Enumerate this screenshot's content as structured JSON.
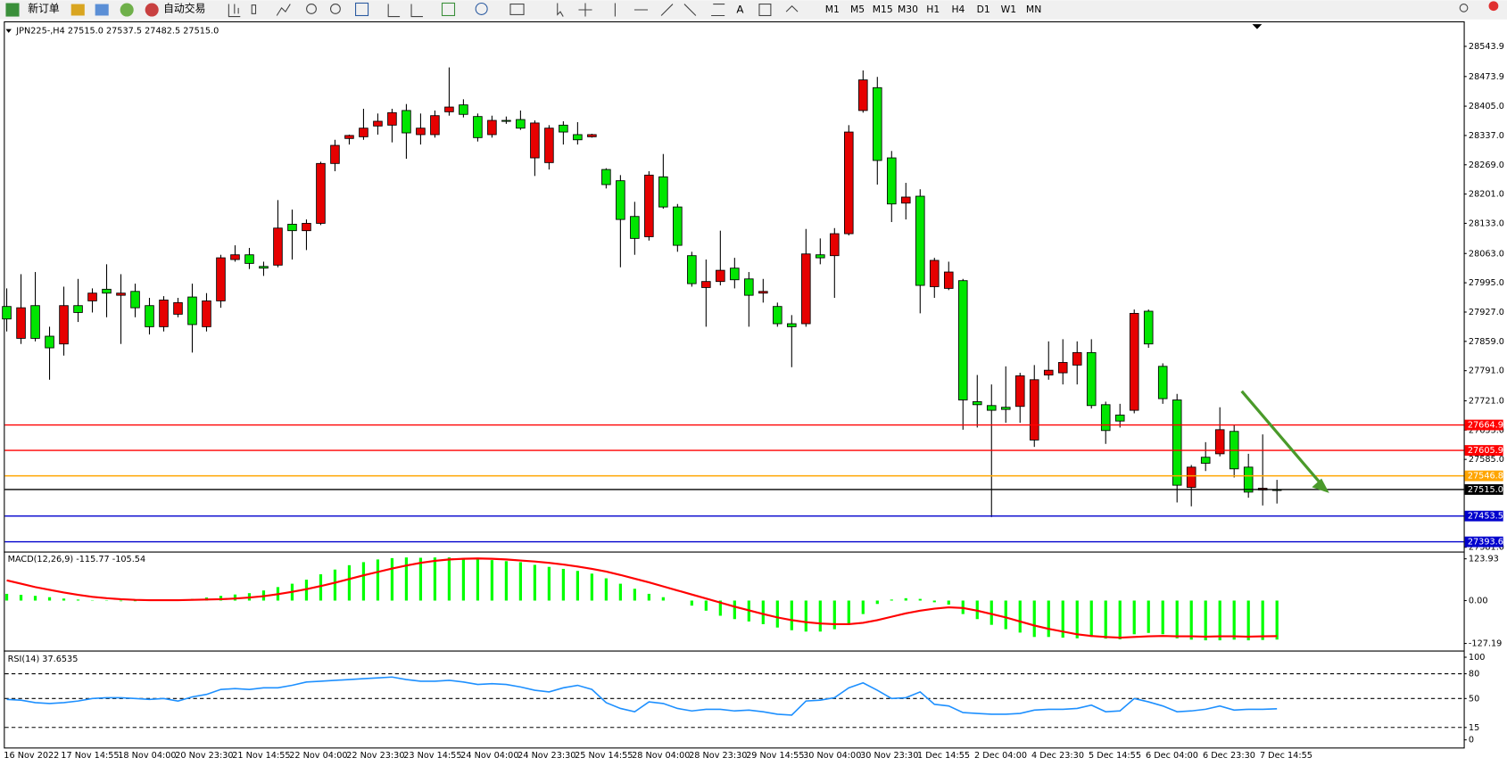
{
  "toolbar": {
    "new_order": "新订单",
    "auto_trading": "自动交易",
    "timeframes": [
      "M1",
      "M5",
      "M15",
      "M30",
      "H1",
      "H4",
      "D1",
      "W1",
      "MN"
    ]
  },
  "chart_data": [
    {
      "type": "candlestick",
      "title": "JPN225-,H4  27515.0 27537.5 27482.5 27515.0",
      "up_color": "#00e600",
      "down_color": "#e60000",
      "grid": false,
      "categories": [
        "16 Nov 2022",
        null,
        null,
        null,
        "17 Nov 14:55",
        null,
        null,
        null,
        "18 Nov 04:00",
        null,
        null,
        null,
        "20 Nov 23:30",
        null,
        null,
        null,
        "21 Nov 14:55",
        null,
        null,
        null,
        "22 Nov 04:00",
        null,
        null,
        null,
        "22 Nov 23:30",
        null,
        null,
        null,
        "23 Nov 14:55",
        null,
        null,
        null,
        "24 Nov 04:00",
        null,
        null,
        null,
        "24 Nov 23:30",
        null,
        null,
        null,
        "25 Nov 14:55",
        null,
        null,
        null,
        "28 Nov 04:00",
        null,
        null,
        null,
        "28 Nov 23:30",
        null,
        null,
        null,
        "29 Nov 14:55",
        null,
        null,
        null,
        "30 Nov 04:00",
        null,
        null,
        null,
        "30 Nov 23:30",
        null,
        null,
        null,
        "1 Dec 14:55",
        null,
        null,
        null,
        "2 Dec 04:00",
        null,
        null,
        null,
        "4 Dec 23:30",
        null,
        null,
        null,
        "5 Dec 14:55",
        null,
        null,
        null,
        "6 Dec 04:00",
        null,
        null,
        null,
        "6 Dec 23:30",
        null,
        null,
        null,
        "7 Dec 14:55",
        null
      ],
      "open": [
        27911,
        27937,
        27866,
        27844,
        27942,
        27926,
        27971,
        27971,
        27971,
        27937,
        27893,
        27955,
        27949,
        27898,
        27953,
        28053,
        28060,
        28040,
        28029,
        28122,
        28116,
        28133,
        28272,
        28314,
        28337,
        28354,
        28370,
        28390,
        28343,
        28354,
        28383,
        28403,
        28386,
        28332,
        28372,
        28370,
        28354,
        28366,
        28354,
        28345,
        28327,
        28339,
        28223,
        28142,
        28098,
        28245,
        28171,
        28082,
        27993,
        27998,
        28024,
        28002,
        27966,
        27975,
        27900,
        27893,
        28062,
        28053,
        28109,
        28345,
        28466,
        28279,
        28178,
        28194,
        27989,
        28047,
        28020,
        27723,
        27712,
        27699,
        27701,
        27779,
        27770,
        27792,
        27810,
        27833,
        27710,
        27652,
        27674,
        27924,
        27853,
        27726,
        27525,
        27567,
        27576,
        27654,
        27563,
        27509,
        27518,
        27515
      ],
      "high": [
        27982,
        28015,
        28020,
        27893,
        27986,
        28004,
        27982,
        28038,
        28015,
        27993,
        27960,
        27964,
        27960,
        27993,
        27971,
        28060,
        28082,
        28076,
        28044,
        28187,
        28165,
        28142,
        28276,
        28327,
        28339,
        28399,
        28388,
        28399,
        28410,
        28388,
        28395,
        28495,
        28421,
        28388,
        28383,
        28381,
        28395,
        28372,
        28361,
        28370,
        28368,
        28341,
        28261,
        28245,
        28183,
        28254,
        28294,
        28178,
        28067,
        28049,
        28116,
        28053,
        28020,
        28004,
        27949,
        27920,
        28120,
        28098,
        28122,
        28361,
        28488,
        28473,
        28301,
        28227,
        28212,
        28053,
        28044,
        28004,
        27781,
        27759,
        27801,
        27786,
        27804,
        27859,
        27864,
        27859,
        27864,
        27719,
        27714,
        27933,
        27933,
        27808,
        27737,
        27572,
        27625,
        27706,
        27665,
        27598,
        27643,
        27537.5
      ],
      "low": [
        27882,
        27853,
        27859,
        27770,
        27826,
        27904,
        27926,
        27915,
        27853,
        27915,
        27875,
        27882,
        27915,
        27833,
        27882,
        27937,
        28044,
        28027,
        28011,
        28031,
        28049,
        28071,
        28129,
        28254,
        28316,
        28327,
        28339,
        28321,
        28283,
        28316,
        28332,
        28383,
        28379,
        28323,
        28332,
        28364,
        28350,
        28243,
        28258,
        28316,
        28316,
        28332,
        28214,
        28031,
        28060,
        28093,
        28167,
        28067,
        27986,
        27893,
        27989,
        27982,
        27893,
        27949,
        27893,
        27799,
        27893,
        28038,
        27960,
        28105,
        28390,
        28223,
        28136,
        28142,
        27924,
        27960,
        27978,
        27654,
        27659,
        27451,
        27670,
        27670,
        27614,
        27770,
        27759,
        27759,
        27703,
        27621,
        27659,
        27692,
        27844,
        27714,
        27485,
        27476,
        27558,
        27592,
        27543,
        27496,
        27478,
        27482.5
      ],
      "close": [
        27940,
        27866,
        27942,
        27871,
        27853,
        27942,
        27953,
        27980,
        27966,
        27975,
        27942,
        27893,
        27922,
        27962,
        27893,
        27953,
        28049,
        28060,
        28033,
        28036,
        28131,
        28116,
        28133,
        28272,
        28330,
        28334,
        28359,
        28361,
        28395,
        28339,
        28339,
        28392,
        28408,
        28381,
        28339,
        28372,
        28374,
        28285,
        28274,
        28361,
        28339,
        28334,
        28258,
        28232,
        28149,
        28102,
        28241,
        28171,
        28058,
        27984,
        27998,
        28029,
        28004,
        27971,
        27940,
        27900,
        27900,
        28060,
        28058,
        28109,
        28395,
        28448,
        28285,
        28180,
        28196,
        27986,
        27982,
        28000,
        27719,
        27710,
        27706,
        27708,
        27630,
        27781,
        27786,
        27804,
        27833,
        27712,
        27688,
        27699,
        27929,
        27801,
        27723,
        27520,
        27590,
        27598,
        27650,
        27567,
        27514,
        27515
      ],
      "ylim": [
        27373.2,
        28597.5
      ],
      "yticks": [
        28543.9,
        28473.9,
        {
          "value": 28405,
          "label": "28405.0"
        },
        {
          "value": 28337,
          "label": "28337.0"
        },
        {
          "value": 28269,
          "label": "28269.0"
        },
        {
          "value": 28201,
          "label": "28201.0"
        },
        {
          "value": 28133,
          "label": "28133.0"
        },
        {
          "value": 28063,
          "label": "28063.0"
        },
        {
          "value": 27995,
          "label": "27995.0"
        },
        {
          "value": 27927,
          "label": "27927.0"
        },
        {
          "value": 27859,
          "label": "27859.0"
        },
        {
          "value": 27791,
          "label": "27791.0"
        },
        {
          "value": 27721,
          "label": "27721.0"
        },
        {
          "value": 27653,
          "label": "27653.0"
        },
        {
          "value": 27585,
          "label": "27585.0"
        },
        {
          "value": 27381,
          "label": "27381.0"
        }
      ],
      "hlines": [
        {
          "value": 27664.9,
          "color": "#ff0000"
        },
        {
          "value": 27605.9,
          "color": "#ff0000"
        },
        {
          "value": 27546.8,
          "color": "#ffa500"
        },
        {
          "value": 27515,
          "label": "27515.0",
          "color": "#000000"
        },
        {
          "value": 27453.5,
          "color": "#0000cd"
        },
        {
          "value": 27393.6,
          "color": "#0000cd"
        }
      ]
    },
    {
      "type": "macd",
      "title": "MACD(12,26,9) -115.77 -105.54",
      "histogram": {
        "color": "#00ff00",
        "values": [
          20,
          17,
          14,
          10,
          6,
          3,
          1,
          -1,
          -2,
          -2,
          0,
          1,
          2,
          5,
          9,
          14,
          18,
          22,
          30,
          40,
          50,
          62,
          78,
          92,
          105,
          114,
          122,
          126,
          128,
          127,
          128,
          128,
          126,
          124,
          120,
          117,
          114,
          106,
          100,
          94,
          88,
          80,
          66,
          50,
          35,
          20,
          10,
          0,
          -15,
          -30,
          -45,
          -55,
          -62,
          -70,
          -80,
          -88,
          -92,
          -92,
          -85,
          -70,
          -40,
          -10,
          3,
          7,
          5,
          -5,
          -12,
          -40,
          -55,
          -72,
          -85,
          -95,
          -108,
          -108,
          -110,
          -112,
          -108,
          -113,
          -115,
          -100,
          -96,
          -100,
          -112,
          -116,
          -118,
          -118,
          -116,
          -118,
          -117,
          -115.77
        ]
      },
      "signal": {
        "color": "#ff0000",
        "values": [
          60,
          50,
          40,
          32,
          24,
          17,
          11,
          7,
          4,
          2,
          1,
          1,
          1,
          2,
          3,
          4,
          6,
          9,
          13,
          19,
          26,
          34,
          43,
          53,
          64,
          75,
          85,
          95,
          104,
          112,
          118,
          122,
          124,
          125,
          124,
          122,
          119,
          116,
          112,
          107,
          101,
          94,
          86,
          76,
          65,
          54,
          42,
          30,
          18,
          6,
          -6,
          -18,
          -29,
          -40,
          -50,
          -58,
          -64,
          -68,
          -70,
          -70,
          -66,
          -58,
          -48,
          -38,
          -30,
          -24,
          -20,
          -22,
          -30,
          -40,
          -50,
          -62,
          -74,
          -84,
          -92,
          -100,
          -105,
          -108,
          -110,
          -108,
          -106,
          -105,
          -106,
          -106,
          -107,
          -106,
          -106,
          -107,
          -106,
          -105.54
        ]
      },
      "ylim": [
        -142.5,
        139.7
      ],
      "yticks": [
        123.93,
        {
          "value": 0,
          "label": "0.00"
        },
        -127.19
      ]
    },
    {
      "type": "line",
      "title": "RSI(14) 37.6535",
      "color": "#1e90ff",
      "values": [
        49,
        48,
        45,
        44,
        45,
        47,
        50,
        51,
        51,
        50,
        49,
        50,
        47,
        52,
        55,
        61,
        62,
        61,
        63,
        63,
        66,
        70,
        71,
        72,
        73,
        74,
        75,
        76,
        73,
        71,
        71,
        72,
        70,
        67,
        68,
        67,
        64,
        60,
        58,
        63,
        66,
        61,
        45,
        38,
        34,
        46,
        44,
        38,
        35,
        37,
        37,
        35,
        36,
        34,
        31,
        30,
        47,
        48,
        51,
        63,
        69,
        60,
        50,
        51,
        58,
        43,
        41,
        33,
        32,
        31,
        31,
        32,
        36,
        37,
        37,
        38,
        42,
        34,
        35,
        50,
        46,
        41,
        34,
        35,
        37,
        41,
        36,
        37,
        37,
        37.6535
      ],
      "ylim": [
        -9.3,
        105.8
      ],
      "yticks": [
        100,
        80,
        50,
        15,
        0
      ],
      "levels": [
        80,
        50,
        15
      ]
    }
  ]
}
